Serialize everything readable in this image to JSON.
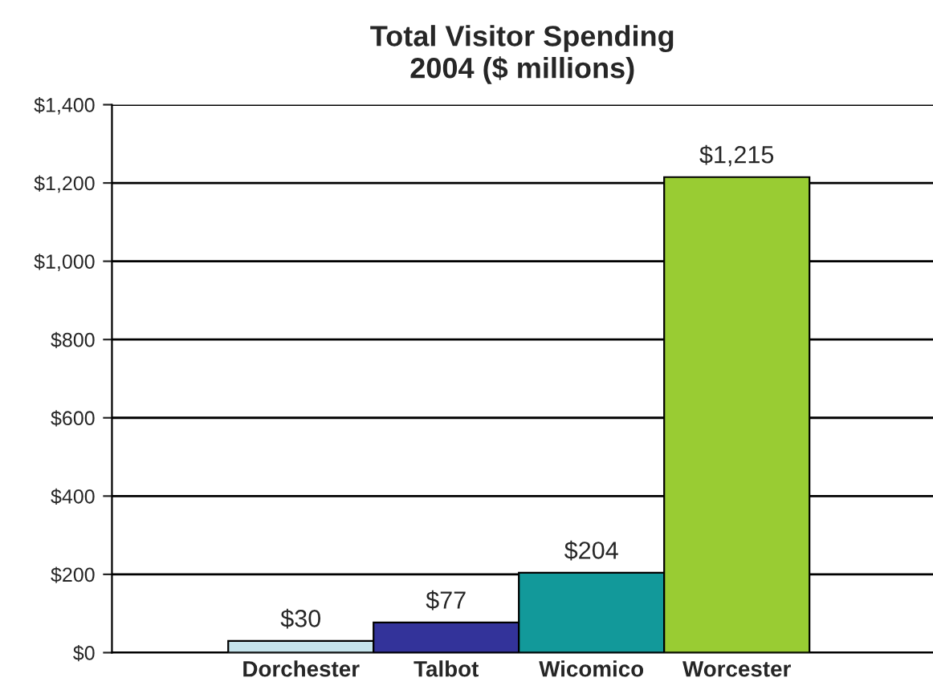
{
  "chart_data": {
    "type": "bar",
    "title": "Total Visitor Spending\n2004 ($ millions)",
    "categories": [
      "Dorchester",
      "Talbot",
      "Wicomico",
      "Worcester"
    ],
    "values": [
      30,
      77,
      204,
      1215
    ],
    "value_labels": [
      "$30",
      "$77",
      "$204",
      "$1,215"
    ],
    "colors": [
      "#c6e4ec",
      "#33339a",
      "#12999a",
      "#99cc33"
    ],
    "ylim": [
      0,
      1400
    ],
    "yticks": [
      {
        "value": 0,
        "label": "$0"
      },
      {
        "value": 200,
        "label": "$200"
      },
      {
        "value": 400,
        "label": "$400"
      },
      {
        "value": 600,
        "label": "$600"
      },
      {
        "value": 800,
        "label": "$800"
      },
      {
        "value": 1000,
        "label": "$1,000"
      },
      {
        "value": 1200,
        "label": "$1,200"
      },
      {
        "value": 1400,
        "label": "$1,400"
      }
    ],
    "grid": "y",
    "legend": false
  }
}
